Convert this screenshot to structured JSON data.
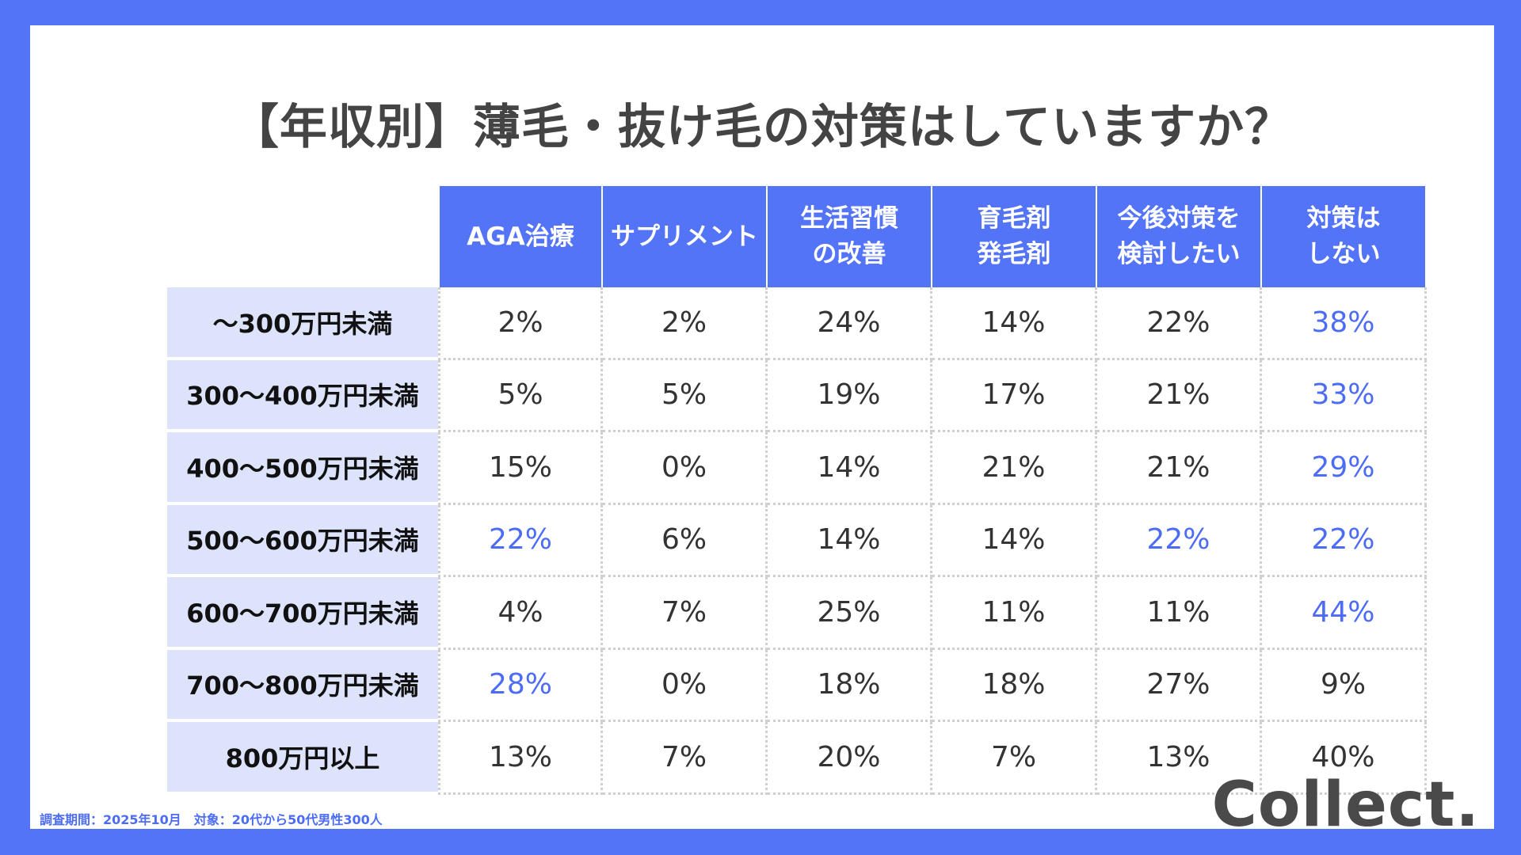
{
  "title": "【年収別】薄毛・抜け毛の対策はしていますか？",
  "colors": {
    "background": "#5474f8",
    "header": "#5474f8",
    "row_header": "#dde3fb",
    "highlight": "#4d6cf5",
    "text": "#333333"
  },
  "chart_data": {
    "type": "table",
    "title": "【年収別】薄毛・抜け毛の対策はしていますか？",
    "columns": [
      "AGA治療",
      "サプリメント",
      "生活習慣\nの改善",
      "育毛剤\n発毛剤",
      "今後対策を\n検討したい",
      "対策は\nしない"
    ],
    "rows": [
      {
        "label": "〜300万円未満",
        "values": [
          "2%",
          "2%",
          "24%",
          "14%",
          "22%",
          "38%"
        ],
        "highlight": [
          false,
          false,
          false,
          false,
          false,
          true
        ]
      },
      {
        "label": "300〜400万円未満",
        "values": [
          "5%",
          "5%",
          "19%",
          "17%",
          "21%",
          "33%"
        ],
        "highlight": [
          false,
          false,
          false,
          false,
          false,
          true
        ]
      },
      {
        "label": "400〜500万円未満",
        "values": [
          "15%",
          "0%",
          "14%",
          "21%",
          "21%",
          "29%"
        ],
        "highlight": [
          false,
          false,
          false,
          false,
          false,
          true
        ]
      },
      {
        "label": "500〜600万円未満",
        "values": [
          "22%",
          "6%",
          "14%",
          "14%",
          "22%",
          "22%"
        ],
        "highlight": [
          true,
          false,
          false,
          false,
          true,
          true
        ]
      },
      {
        "label": "600〜700万円未満",
        "values": [
          "4%",
          "7%",
          "25%",
          "11%",
          "11%",
          "44%"
        ],
        "highlight": [
          false,
          false,
          false,
          false,
          false,
          true
        ]
      },
      {
        "label": "700〜800万円未満",
        "values": [
          "28%",
          "0%",
          "18%",
          "18%",
          "27%",
          "9%"
        ],
        "highlight": [
          true,
          false,
          false,
          false,
          false,
          false
        ]
      },
      {
        "label": "800万円以上",
        "values": [
          "13%",
          "7%",
          "20%",
          "7%",
          "13%",
          "40%"
        ],
        "highlight": [
          false,
          false,
          false,
          false,
          false,
          false
        ]
      }
    ]
  },
  "footnote": "調査期間：2025年10月　対象：20代から50代男性300人",
  "logo": "Collect."
}
